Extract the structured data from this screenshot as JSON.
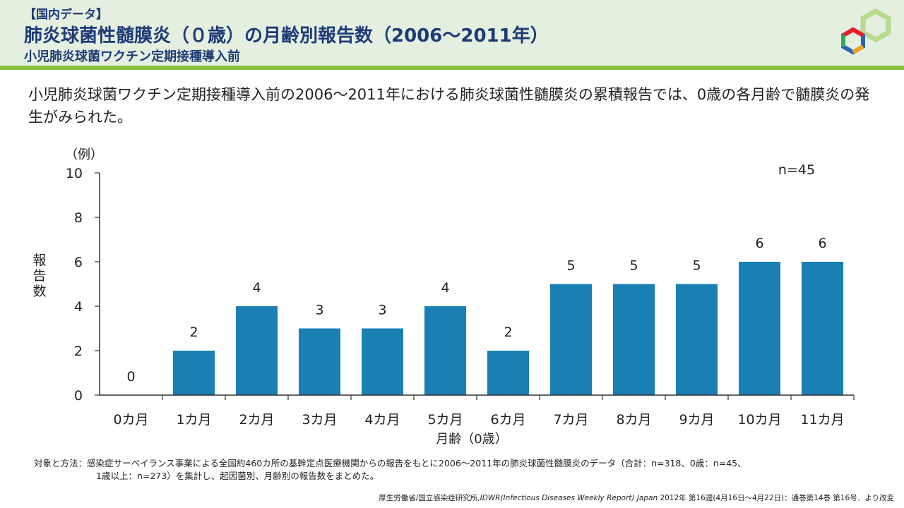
{
  "header": {
    "tag": "【国内データ】",
    "title": "肺炎球菌性髄膜炎（０歳）の月齢別報告数（2006～2011年）",
    "subtitle": "小児肺炎球菌ワクチン定期接種導入前"
  },
  "lead_text": "小児肺炎球菌ワクチン定期接種導入前の2006～2011年における肺炎球菌性髄膜炎の累積報告では、0歳の各月齢で髄膜炎の発生がみられた。",
  "chart_data": {
    "type": "bar",
    "categories": [
      "0カ月",
      "1カ月",
      "2カ月",
      "3カ月",
      "4カ月",
      "5カ月",
      "6カ月",
      "7カ月",
      "8カ月",
      "9カ月",
      "10カ月",
      "11カ月"
    ],
    "values": [
      0,
      2,
      4,
      3,
      3,
      4,
      2,
      5,
      5,
      5,
      6,
      6
    ],
    "data_labels": [
      "0",
      "2",
      "4",
      "3",
      "3",
      "4",
      "2",
      "5",
      "5",
      "5",
      "6",
      "6"
    ],
    "y_ticks": [
      "0",
      "2",
      "4",
      "6",
      "8",
      "10"
    ],
    "ylim": [
      0,
      10
    ],
    "ylabel": "報告数",
    "yunit": "（例）",
    "xlabel": "月齢（0歳）",
    "annotation": "n=45",
    "bar_color": "#1a7fb2",
    "grid": false
  },
  "notes": {
    "line1": "対象と方法：感染症サーベイランス事業による全国約460カ所の基幹定点医療機関からの報告をもとに2006～2011年の肺炎球菌性髄膜炎のデータ（合計：n=318、0歳：n=45、",
    "line2": "1歳以上：n=273）を集計し、起因菌別、月齢別の報告数をまとめた。"
  },
  "source": {
    "prefix": "厚生労働省/国立感染症研究所,",
    "journal": "IDWR(Infectious Diseases Weekly Report) Japan",
    "suffix": " 2012年  第16週(4月16日～4月22日)：通巻第14巻 第16号．より改変"
  },
  "logo_icon": "hexagon-logo-icon"
}
